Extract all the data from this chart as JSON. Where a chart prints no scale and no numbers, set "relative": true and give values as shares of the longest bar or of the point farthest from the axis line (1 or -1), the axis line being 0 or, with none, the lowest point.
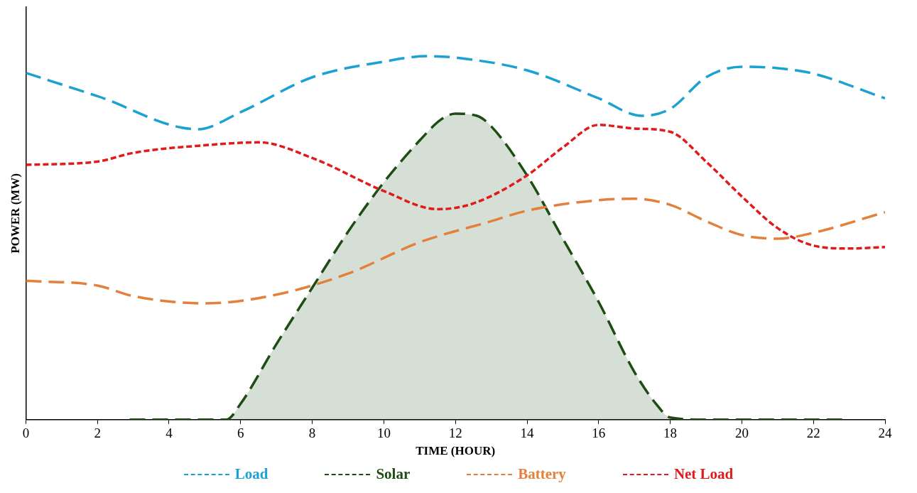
{
  "chart_data": {
    "type": "line",
    "relative": true,
    "xlabel": "TIME (HOUR)",
    "ylabel": "POWER (MW)",
    "xlim": [
      0,
      24
    ],
    "xticks": [
      0,
      2,
      4,
      6,
      8,
      10,
      12,
      14,
      16,
      18,
      20,
      22,
      24
    ],
    "legend": "bottom",
    "grid": false,
    "marker": "none",
    "series": [
      {
        "name": "Load",
        "color": "#1ba1d2",
        "line_style": "dashed",
        "x": [
          0,
          2,
          4.8,
          6,
          8,
          10,
          11.2,
          12,
          14,
          16,
          17.2,
          18,
          19,
          20,
          21,
          22,
          24
        ],
        "values": [
          0.954,
          0.89,
          0.799,
          0.846,
          0.942,
          0.985,
          1,
          0.996,
          0.961,
          0.884,
          0.836,
          0.855,
          0.942,
          0.971,
          0.967,
          0.952,
          0.884
        ]
      },
      {
        "name": "Solar",
        "type": "area",
        "color": "#1e4d14",
        "line_style": "dashed",
        "x": [
          2.9,
          5.6,
          6,
          7,
          8,
          9,
          10,
          11,
          11.6,
          12,
          12.6,
          13,
          14,
          15,
          16,
          17,
          17.6,
          18,
          19,
          22.8
        ],
        "values": [
          0,
          0,
          0.044,
          0.208,
          0.363,
          0.517,
          0.653,
          0.768,
          0.826,
          0.842,
          0.836,
          0.807,
          0.672,
          0.498,
          0.324,
          0.131,
          0.044,
          0.006,
          0,
          0
        ]
      },
      {
        "name": "Battery",
        "color": "#e5803c",
        "line_style": "dashed",
        "x": [
          0,
          2,
          3,
          5,
          7,
          9,
          11,
          13,
          14,
          16,
          17,
          18,
          19,
          20,
          21,
          22,
          24
        ],
        "values": [
          0.382,
          0.369,
          0.34,
          0.32,
          0.344,
          0.402,
          0.488,
          0.546,
          0.575,
          0.604,
          0.608,
          0.591,
          0.546,
          0.508,
          0.498,
          0.514,
          0.571
        ]
      },
      {
        "name": "Net Load",
        "color": "#e01b1b",
        "line_style": "dotted",
        "x": [
          0,
          2,
          3,
          5,
          6.5,
          8,
          10,
          11.5,
          12.5,
          14,
          15,
          16,
          17,
          18,
          19,
          20,
          21,
          22,
          23,
          24
        ],
        "values": [
          0.701,
          0.71,
          0.734,
          0.755,
          0.763,
          0.72,
          0.629,
          0.579,
          0.595,
          0.672,
          0.749,
          0.811,
          0.801,
          0.792,
          0.71,
          0.614,
          0.527,
          0.479,
          0.471,
          0.475
        ]
      }
    ]
  }
}
